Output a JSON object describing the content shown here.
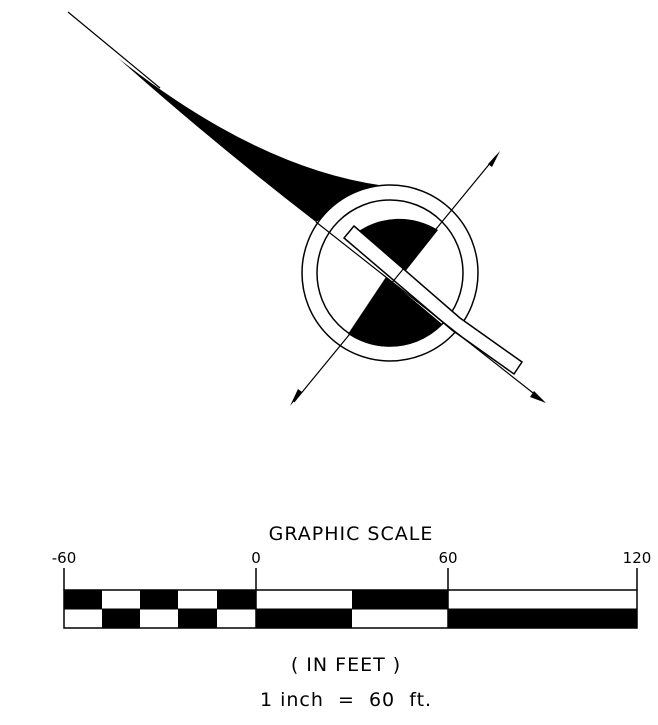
{
  "colors": {
    "ink": "#000000",
    "paper": "#ffffff"
  },
  "north_arrow": {
    "icon": "north-arrow-icon"
  },
  "scale_bar": {
    "title": "GRAPHIC SCALE",
    "tick_labels": [
      "-60",
      "0",
      "60",
      "120"
    ],
    "units_label": "( IN FEET )",
    "ratio_label": "1 inch  =  60  ft."
  }
}
